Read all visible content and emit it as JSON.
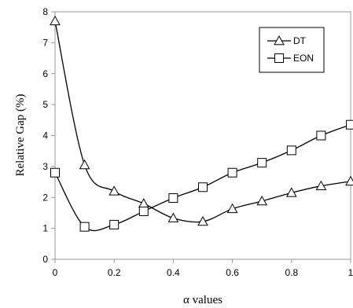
{
  "chart_data": {
    "type": "line",
    "xlabel": "α values",
    "ylabel": "Relative Gap (%)",
    "xlim": [
      0,
      1
    ],
    "ylim": [
      0,
      8
    ],
    "xticks": [
      "0",
      "0.2",
      "0.4",
      "0.6",
      "0.8",
      "1"
    ],
    "xtick_values": [
      0,
      0.2,
      0.4,
      0.6,
      0.8,
      1
    ],
    "yticks": [
      "0",
      "1",
      "2",
      "3",
      "4",
      "5",
      "6",
      "7",
      "8"
    ],
    "ytick_values": [
      0,
      1,
      2,
      3,
      4,
      5,
      6,
      7,
      8
    ],
    "grid": false,
    "legend_position": "top-right",
    "x": [
      0,
      0.1,
      0.2,
      0.3,
      0.4,
      0.5,
      0.6,
      0.7,
      0.8,
      0.9,
      1.0
    ],
    "series": [
      {
        "name": "DT",
        "marker": "triangle",
        "color": "#000000",
        "values": [
          7.7,
          3.05,
          2.2,
          1.8,
          1.33,
          1.22,
          1.63,
          1.88,
          2.15,
          2.37,
          2.52
        ]
      },
      {
        "name": "EON",
        "marker": "square",
        "color": "#000000",
        "values": [
          2.8,
          1.05,
          1.12,
          1.55,
          1.98,
          2.33,
          2.8,
          3.12,
          3.52,
          4.0,
          4.35
        ]
      }
    ]
  }
}
